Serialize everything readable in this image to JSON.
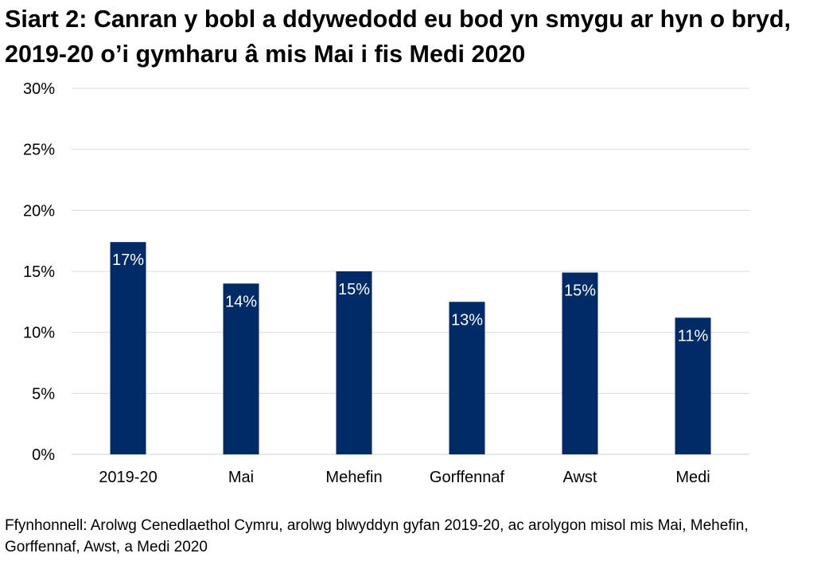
{
  "chart_data": {
    "type": "bar",
    "title": "Siart 2: Canran y bobl a ddywedodd eu bod yn smygu ar hyn o bryd, 2019-20 o’i gymharu â mis Mai i fis Medi 2020",
    "categories": [
      "2019-20",
      "Mai",
      "Mehefin",
      "Gorffennaf",
      "Awst",
      "Medi"
    ],
    "values": [
      17.4,
      14.0,
      15.0,
      12.5,
      14.9,
      11.2
    ],
    "data_labels": [
      "17%",
      "14%",
      "15%",
      "13%",
      "15%",
      "11%"
    ],
    "xlabel": "",
    "ylabel": "",
    "ylim": [
      0,
      30
    ],
    "yticks": [
      "0%",
      "5%",
      "10%",
      "15%",
      "20%",
      "25%",
      "30%"
    ],
    "grid": true,
    "bar_color": "#002b66",
    "label_color": "#ffffff"
  },
  "source": "Ffynhonnell: Arolwg Cenedlaethol Cymru, arolwg blwyddyn gyfan 2019-20, ac arolygon misol mis Mai, Mehefin, Gorffennaf, Awst, a Medi 2020"
}
